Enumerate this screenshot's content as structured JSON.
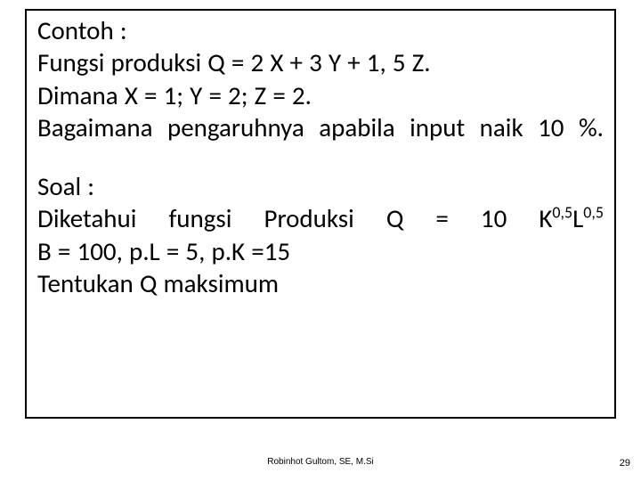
{
  "slide": {
    "border_color": "#000000",
    "background": "#ffffff",
    "text_color": "#000000",
    "font_size_pt": 22,
    "lines_block1": [
      "Contoh :",
      "Fungsi produksi Q = 2 X + 3 Y + 1, 5 Z.",
      "Dimana X = 1; Y = 2; Z = 2.",
      "Bagaimana pengaruhnya apabila input naik 10 %."
    ],
    "lines_block2_pre": "Soal :",
    "lines_block2_eq_prefix": "Diketahui fungsi Produksi Q = 10 K",
    "exp1": "0,5",
    "mid": "L",
    "exp2": "0,5",
    "lines_block2_rest": [
      "B = 100, p.L = 5, p.K =15",
      "Tentukan Q maksimum"
    ],
    "footer_author": "Robinhot Gultom, SE, M.Si",
    "page_number": "29"
  }
}
